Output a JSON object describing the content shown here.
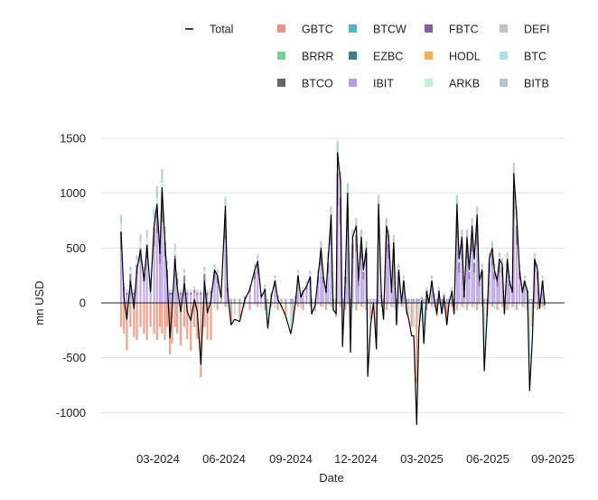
{
  "chart_data": {
    "type": "bar",
    "xlabel": "Date",
    "ylabel": "mn USD",
    "ylim": [
      -1200,
      1600
    ],
    "yticks": [
      1500,
      1000,
      500,
      0,
      -500,
      -1000
    ],
    "xticks": [
      "03-2024",
      "06-2024",
      "09-2024",
      "12-2024",
      "03-2025",
      "06-2025",
      "09-2025"
    ],
    "x_start": "2024-01-11",
    "x_end": "2025-08-22",
    "legend_position": "top",
    "legend": [
      {
        "name": "Total",
        "color": "#000000",
        "kind": "line"
      },
      {
        "name": "GBTC",
        "color": "#f0927b",
        "kind": "bar"
      },
      {
        "name": "BTCW",
        "color": "#4fb5c9",
        "kind": "bar"
      },
      {
        "name": "FBTC",
        "color": "#8a5aa8",
        "kind": "bar"
      },
      {
        "name": "DEFI",
        "color": "#c3c3c3",
        "kind": "bar"
      },
      {
        "name": "BRRR",
        "color": "#6fd49a",
        "kind": "bar"
      },
      {
        "name": "EZBC",
        "color": "#3b7f87",
        "kind": "bar"
      },
      {
        "name": "HODL",
        "color": "#f2b24a",
        "kind": "bar"
      },
      {
        "name": "BTC",
        "color": "#a8e6e6",
        "kind": "bar"
      },
      {
        "name": "BTCO",
        "color": "#666666",
        "kind": "bar"
      },
      {
        "name": "IBIT",
        "color": "#b69be6",
        "kind": "bar"
      },
      {
        "name": "ARKB",
        "color": "#c2f0d4",
        "kind": "bar"
      },
      {
        "name": "BITB",
        "color": "#a9c9cc",
        "kind": "bar"
      }
    ],
    "series_total": [
      {
        "date": "2024-01-11",
        "value": 650
      },
      {
        "date": "2024-01-15",
        "value": 60
      },
      {
        "date": "2024-01-19",
        "value": -150
      },
      {
        "date": "2024-01-24",
        "value": 200
      },
      {
        "date": "2024-01-29",
        "value": -50
      },
      {
        "date": "2024-02-02",
        "value": 300
      },
      {
        "date": "2024-02-07",
        "value": 480
      },
      {
        "date": "2024-02-12",
        "value": 200
      },
      {
        "date": "2024-02-16",
        "value": 520
      },
      {
        "date": "2024-02-21",
        "value": 100
      },
      {
        "date": "2024-02-26",
        "value": 700
      },
      {
        "date": "2024-03-01",
        "value": 900
      },
      {
        "date": "2024-03-05",
        "value": 450
      },
      {
        "date": "2024-03-08",
        "value": 1050
      },
      {
        "date": "2024-03-12",
        "value": 550
      },
      {
        "date": "2024-03-15",
        "value": 250
      },
      {
        "date": "2024-03-19",
        "value": -320
      },
      {
        "date": "2024-03-22",
        "value": -50
      },
      {
        "date": "2024-03-26",
        "value": 400
      },
      {
        "date": "2024-03-29",
        "value": 150
      },
      {
        "date": "2024-04-03",
        "value": -80
      },
      {
        "date": "2024-04-08",
        "value": 180
      },
      {
        "date": "2024-04-12",
        "value": -80
      },
      {
        "date": "2024-04-17",
        "value": -160
      },
      {
        "date": "2024-04-22",
        "value": 30
      },
      {
        "date": "2024-04-26",
        "value": -80
      },
      {
        "date": "2024-05-01",
        "value": -560
      },
      {
        "date": "2024-05-06",
        "value": 200
      },
      {
        "date": "2024-05-10",
        "value": -90
      },
      {
        "date": "2024-05-15",
        "value": 20
      },
      {
        "date": "2024-05-20",
        "value": 300
      },
      {
        "date": "2024-05-24",
        "value": 250
      },
      {
        "date": "2024-05-29",
        "value": 50
      },
      {
        "date": "2024-06-04",
        "value": 880
      },
      {
        "date": "2024-06-07",
        "value": 130
      },
      {
        "date": "2024-06-12",
        "value": -200
      },
      {
        "date": "2024-06-17",
        "value": -150
      },
      {
        "date": "2024-06-24",
        "value": -170
      },
      {
        "date": "2024-07-01",
        "value": 30
      },
      {
        "date": "2024-07-08",
        "value": 120
      },
      {
        "date": "2024-07-15",
        "value": 300
      },
      {
        "date": "2024-07-19",
        "value": 380
      },
      {
        "date": "2024-07-24",
        "value": 50
      },
      {
        "date": "2024-07-29",
        "value": 120
      },
      {
        "date": "2024-08-02",
        "value": -230
      },
      {
        "date": "2024-08-07",
        "value": 60
      },
      {
        "date": "2024-08-12",
        "value": 200
      },
      {
        "date": "2024-08-16",
        "value": 30
      },
      {
        "date": "2024-08-21",
        "value": -30
      },
      {
        "date": "2024-08-27",
        "value": -120
      },
      {
        "date": "2024-09-03",
        "value": -280
      },
      {
        "date": "2024-09-06",
        "value": -170
      },
      {
        "date": "2024-09-10",
        "value": 30
      },
      {
        "date": "2024-09-13",
        "value": 250
      },
      {
        "date": "2024-09-17",
        "value": 50
      },
      {
        "date": "2024-09-20",
        "value": 100
      },
      {
        "date": "2024-09-25",
        "value": 150
      },
      {
        "date": "2024-09-30",
        "value": 240
      },
      {
        "date": "2024-10-02",
        "value": -100
      },
      {
        "date": "2024-10-07",
        "value": -20
      },
      {
        "date": "2024-10-11",
        "value": 250
      },
      {
        "date": "2024-10-15",
        "value": 500
      },
      {
        "date": "2024-10-18",
        "value": 250
      },
      {
        "date": "2024-10-22",
        "value": 100
      },
      {
        "date": "2024-10-25",
        "value": 400
      },
      {
        "date": "2024-10-29",
        "value": 800
      },
      {
        "date": "2024-11-01",
        "value": -60
      },
      {
        "date": "2024-11-05",
        "value": -100
      },
      {
        "date": "2024-11-07",
        "value": 1370
      },
      {
        "date": "2024-11-11",
        "value": 1100
      },
      {
        "date": "2024-11-14",
        "value": -400
      },
      {
        "date": "2024-11-18",
        "value": 250
      },
      {
        "date": "2024-11-21",
        "value": 1000
      },
      {
        "date": "2024-11-25",
        "value": -450
      },
      {
        "date": "2024-11-28",
        "value": 600
      },
      {
        "date": "2024-12-03",
        "value": 700
      },
      {
        "date": "2024-12-06",
        "value": 200
      },
      {
        "date": "2024-12-10",
        "value": 600
      },
      {
        "date": "2024-12-13",
        "value": 300
      },
      {
        "date": "2024-12-17",
        "value": 500
      },
      {
        "date": "2024-12-19",
        "value": -670
      },
      {
        "date": "2024-12-23",
        "value": -200
      },
      {
        "date": "2024-12-27",
        "value": 0
      },
      {
        "date": "2024-12-31",
        "value": -420
      },
      {
        "date": "2025-01-03",
        "value": 900
      },
      {
        "date": "2025-01-07",
        "value": 50
      },
      {
        "date": "2025-01-10",
        "value": -150
      },
      {
        "date": "2025-01-14",
        "value": 700
      },
      {
        "date": "2025-01-17",
        "value": 600
      },
      {
        "date": "2025-01-21",
        "value": 100
      },
      {
        "date": "2025-01-24",
        "value": 550
      },
      {
        "date": "2025-01-28",
        "value": -200
      },
      {
        "date": "2025-01-31",
        "value": 300
      },
      {
        "date": "2025-02-04",
        "value": 0
      },
      {
        "date": "2025-02-07",
        "value": 200
      },
      {
        "date": "2025-02-11",
        "value": -70
      },
      {
        "date": "2025-02-14",
        "value": -150
      },
      {
        "date": "2025-02-18",
        "value": -300
      },
      {
        "date": "2025-02-21",
        "value": -300
      },
      {
        "date": "2025-02-25",
        "value": -1110
      },
      {
        "date": "2025-02-28",
        "value": -250
      },
      {
        "date": "2025-03-04",
        "value": 20
      },
      {
        "date": "2025-03-07",
        "value": -370
      },
      {
        "date": "2025-03-11",
        "value": 100
      },
      {
        "date": "2025-03-14",
        "value": 0
      },
      {
        "date": "2025-03-18",
        "value": 200
      },
      {
        "date": "2025-03-21",
        "value": 50
      },
      {
        "date": "2025-03-25",
        "value": -100
      },
      {
        "date": "2025-03-28",
        "value": 100
      },
      {
        "date": "2025-04-01",
        "value": -100
      },
      {
        "date": "2025-04-04",
        "value": 50
      },
      {
        "date": "2025-04-08",
        "value": -200
      },
      {
        "date": "2025-04-11",
        "value": 0
      },
      {
        "date": "2025-04-15",
        "value": 100
      },
      {
        "date": "2025-04-18",
        "value": -100
      },
      {
        "date": "2025-04-22",
        "value": 900
      },
      {
        "date": "2025-04-25",
        "value": 400
      },
      {
        "date": "2025-04-29",
        "value": 600
      },
      {
        "date": "2025-05-02",
        "value": 50
      },
      {
        "date": "2025-05-06",
        "value": 600
      },
      {
        "date": "2025-05-09",
        "value": 300
      },
      {
        "date": "2025-05-13",
        "value": 700
      },
      {
        "date": "2025-05-16",
        "value": 400
      },
      {
        "date": "2025-05-20",
        "value": 800
      },
      {
        "date": "2025-05-23",
        "value": 200
      },
      {
        "date": "2025-05-27",
        "value": 300
      },
      {
        "date": "2025-05-30",
        "value": -620
      },
      {
        "date": "2025-06-03",
        "value": -100
      },
      {
        "date": "2025-06-06",
        "value": 400
      },
      {
        "date": "2025-06-10",
        "value": 500
      },
      {
        "date": "2025-06-13",
        "value": 300
      },
      {
        "date": "2025-06-17",
        "value": 200
      },
      {
        "date": "2025-06-20",
        "value": 400
      },
      {
        "date": "2025-06-24",
        "value": 350
      },
      {
        "date": "2025-06-27",
        "value": -100
      },
      {
        "date": "2025-07-01",
        "value": 400
      },
      {
        "date": "2025-07-04",
        "value": 200
      },
      {
        "date": "2025-07-08",
        "value": 100
      },
      {
        "date": "2025-07-10",
        "value": 1180
      },
      {
        "date": "2025-07-14",
        "value": 800
      },
      {
        "date": "2025-07-18",
        "value": 300
      },
      {
        "date": "2025-07-22",
        "value": 100
      },
      {
        "date": "2025-07-25",
        "value": 200
      },
      {
        "date": "2025-07-29",
        "value": 100
      },
      {
        "date": "2025-08-01",
        "value": -800
      },
      {
        "date": "2025-08-05",
        "value": -300
      },
      {
        "date": "2025-08-08",
        "value": 400
      },
      {
        "date": "2025-08-12",
        "value": 300
      },
      {
        "date": "2025-08-15",
        "value": -50
      },
      {
        "date": "2025-08-19",
        "value": 200
      },
      {
        "date": "2025-08-22",
        "value": -20
      }
    ]
  }
}
